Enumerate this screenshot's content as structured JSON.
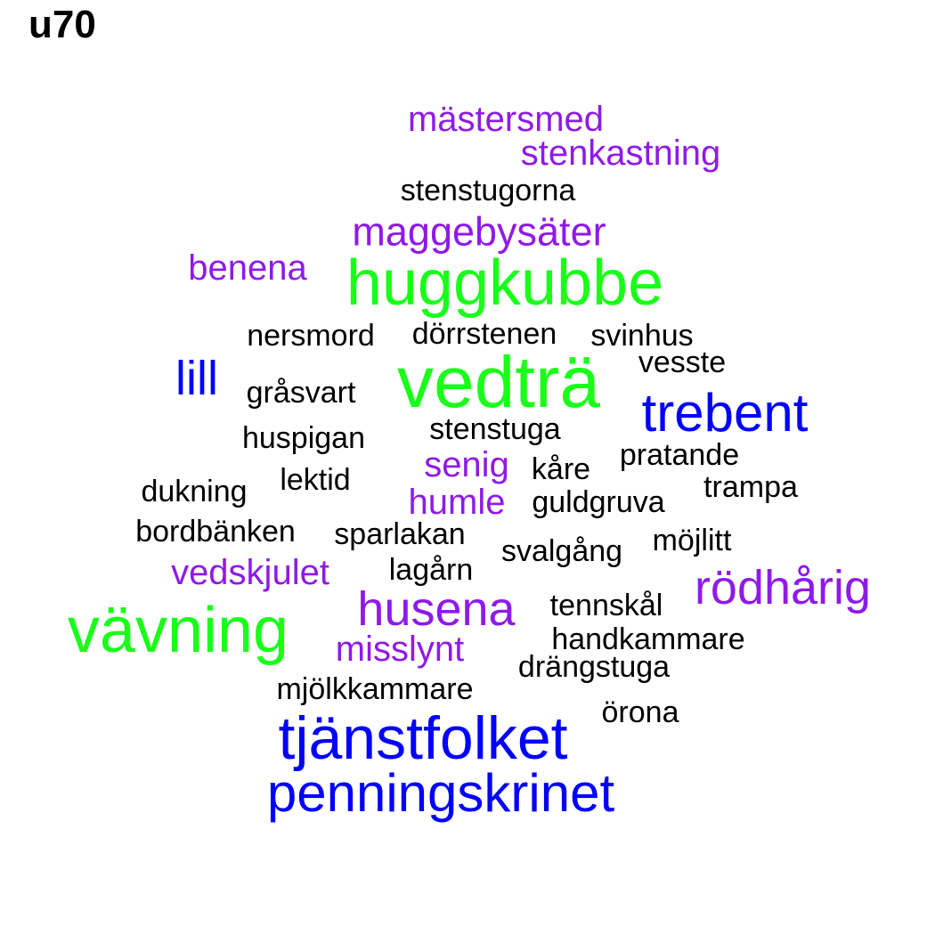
{
  "title": "u70",
  "colors": {
    "green": "#1aff1a",
    "blue": "#0000ff",
    "purple": "#8f1ae8",
    "black": "#000000"
  },
  "words": [
    {
      "text": "mästersmed",
      "color": "purple"
    },
    {
      "text": "stenkastning",
      "color": "purple"
    },
    {
      "text": "stenstugorna",
      "color": "black"
    },
    {
      "text": "maggebysäter",
      "color": "purple"
    },
    {
      "text": "benena",
      "color": "purple"
    },
    {
      "text": "huggkubbe",
      "color": "green"
    },
    {
      "text": "nersmord",
      "color": "black"
    },
    {
      "text": "dörrstenen",
      "color": "black"
    },
    {
      "text": "svinhus",
      "color": "black"
    },
    {
      "text": "vesste",
      "color": "black"
    },
    {
      "text": "lill",
      "color": "blue"
    },
    {
      "text": "gråsvart",
      "color": "black"
    },
    {
      "text": "vedträ",
      "color": "green"
    },
    {
      "text": "trebent",
      "color": "blue"
    },
    {
      "text": "stenstuga",
      "color": "black"
    },
    {
      "text": "huspigan",
      "color": "black"
    },
    {
      "text": "senig",
      "color": "purple"
    },
    {
      "text": "kåre",
      "color": "black"
    },
    {
      "text": "pratande",
      "color": "black"
    },
    {
      "text": "lektid",
      "color": "black"
    },
    {
      "text": "dukning",
      "color": "black"
    },
    {
      "text": "humle",
      "color": "purple"
    },
    {
      "text": "guldgruva",
      "color": "black"
    },
    {
      "text": "trampa",
      "color": "black"
    },
    {
      "text": "bordbänken",
      "color": "black"
    },
    {
      "text": "sparlakan",
      "color": "black"
    },
    {
      "text": "svalgång",
      "color": "black"
    },
    {
      "text": "möjlitt",
      "color": "black"
    },
    {
      "text": "vedskjulet",
      "color": "purple"
    },
    {
      "text": "lagårn",
      "color": "black"
    },
    {
      "text": "rödhårig",
      "color": "purple"
    },
    {
      "text": "tennskål",
      "color": "black"
    },
    {
      "text": "husena",
      "color": "purple"
    },
    {
      "text": "vävning",
      "color": "green"
    },
    {
      "text": "handkammare",
      "color": "black"
    },
    {
      "text": "misslynt",
      "color": "purple"
    },
    {
      "text": "drängstuga",
      "color": "black"
    },
    {
      "text": "mjölkkammare",
      "color": "black"
    },
    {
      "text": "örona",
      "color": "black"
    },
    {
      "text": "tjänstfolket",
      "color": "blue"
    },
    {
      "text": "penningskrinet",
      "color": "blue"
    }
  ]
}
